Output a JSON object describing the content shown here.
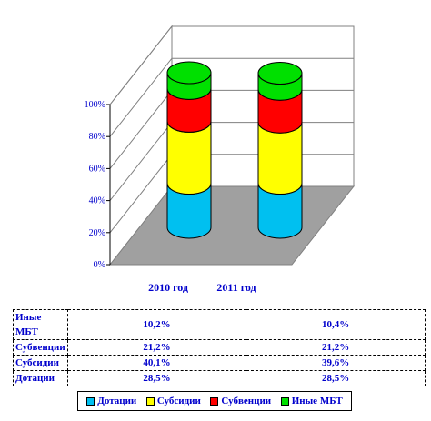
{
  "chart_data": {
    "type": "bar",
    "stacked": true,
    "percent": true,
    "categories": [
      "2010 год",
      "2011 год"
    ],
    "series": [
      {
        "name": "Дотации",
        "color": "#00c0f0",
        "values": [
          28.5,
          28.5
        ],
        "labels": [
          "28,5%",
          "28,5%"
        ]
      },
      {
        "name": "Субсидии",
        "color": "#ffff00",
        "values": [
          40.1,
          39.6
        ],
        "labels": [
          "40,1%",
          "39,6%"
        ]
      },
      {
        "name": "Субвенции",
        "color": "#ff0000",
        "values": [
          21.2,
          21.2
        ],
        "labels": [
          "21,2%",
          "21,2%"
        ]
      },
      {
        "name": "Иные МБТ",
        "color": "#00e000",
        "values": [
          10.2,
          10.4
        ],
        "labels": [
          "10,2%",
          "10,4%"
        ]
      }
    ],
    "yticks": [
      "0%",
      "20%",
      "40%",
      "60%",
      "80%",
      "100%"
    ],
    "ylim": [
      0,
      100
    ],
    "grid": true,
    "legend_position": "bottom"
  }
}
